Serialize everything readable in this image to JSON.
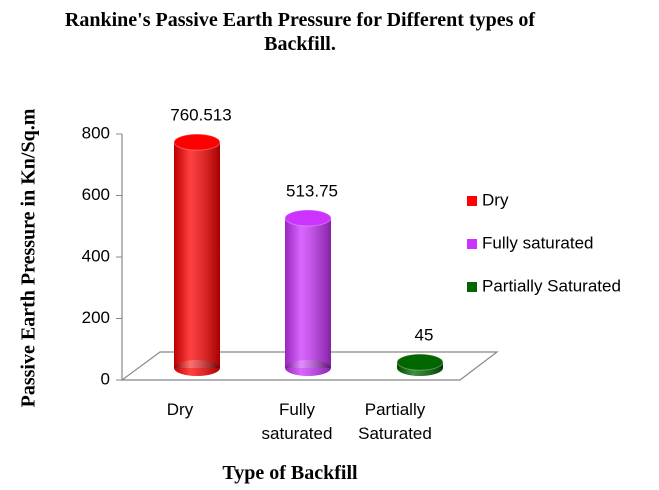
{
  "chart_data": {
    "type": "bar3d",
    "title": "Rankine's Passive Earth Pressure for Different types of Backfill.",
    "x_label": "Type of Backfill",
    "y_label": "Passive Earth Pressure in Kn/Sq.m",
    "categories": [
      "Dry",
      "Fully saturated",
      "Partially Saturated"
    ],
    "values": [
      760.513,
      513.75,
      45
    ],
    "colors": [
      "#ff0000",
      "#cc33ff",
      "#006600"
    ],
    "ylim": [
      0,
      800
    ],
    "yticks": [
      0,
      200,
      400,
      600,
      800
    ],
    "legend": "right"
  }
}
